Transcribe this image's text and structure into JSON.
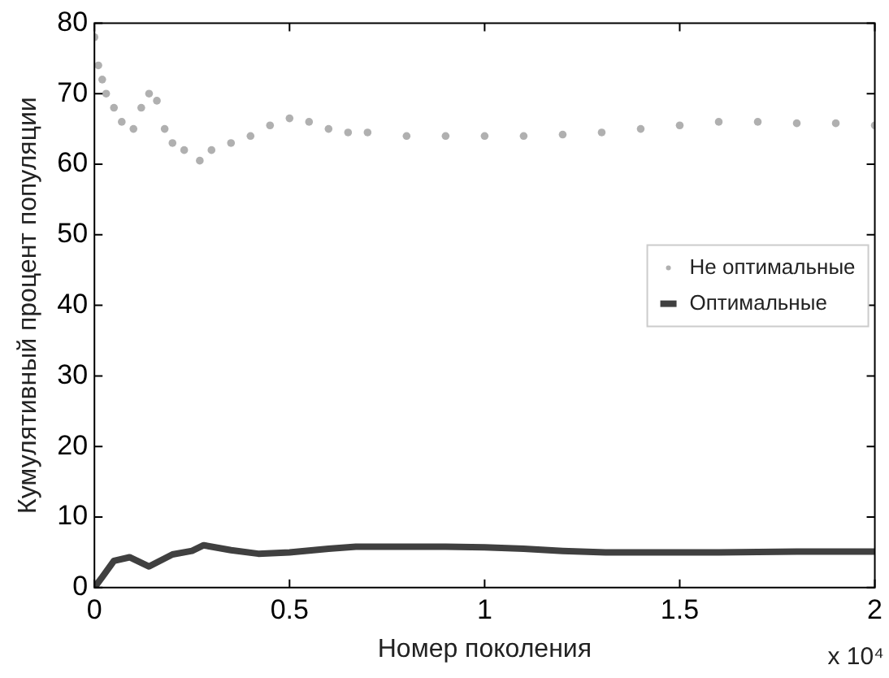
{
  "chart_data": {
    "type": "line",
    "xlabel": "Номер поколения",
    "ylabel": "Кумулятивный процент популяции",
    "annotations": [
      "x 10⁴"
    ],
    "xlim": [
      0,
      2
    ],
    "xticks": [
      0,
      0.5,
      1,
      1.5,
      2
    ],
    "ylim": [
      0,
      80
    ],
    "yticks": [
      0,
      10,
      20,
      30,
      40,
      50,
      60,
      70,
      80
    ],
    "grid": false,
    "legend": "right",
    "series": [
      {
        "name": "Не оптимальные",
        "type": "scatter",
        "marker": "circle",
        "color": "#b0b0b0",
        "x": [
          0,
          0.01,
          0.02,
          0.03,
          0.05,
          0.07,
          0.1,
          0.12,
          0.14,
          0.16,
          0.18,
          0.2,
          0.23,
          0.27,
          0.3,
          0.35,
          0.4,
          0.45,
          0.5,
          0.55,
          0.6,
          0.65,
          0.7,
          0.8,
          0.9,
          1.0,
          1.1,
          1.2,
          1.3,
          1.4,
          1.5,
          1.6,
          1.7,
          1.8,
          1.9,
          2.0
        ],
        "values": [
          78,
          74,
          72,
          70,
          68,
          66,
          65,
          68,
          70,
          69,
          65,
          63,
          62,
          60.5,
          62,
          63,
          64,
          65.5,
          66.5,
          66,
          65,
          64.5,
          64.5,
          64,
          64,
          64,
          64,
          64.2,
          64.5,
          65,
          65.5,
          66,
          66,
          65.8,
          65.8,
          65.5
        ]
      },
      {
        "name": "Оптимальные",
        "marker": "none",
        "color": "#404040",
        "x": [
          0,
          0.02,
          0.05,
          0.09,
          0.14,
          0.2,
          0.25,
          0.28,
          0.35,
          0.42,
          0.5,
          0.6,
          0.67,
          0.8,
          0.9,
          1.0,
          1.1,
          1.2,
          1.31,
          1.45,
          1.6,
          1.8,
          2.0
        ],
        "values": [
          0,
          1.5,
          3.8,
          4.3,
          3,
          4.7,
          5.2,
          6,
          5.3,
          4.8,
          5,
          5.5,
          5.8,
          5.8,
          5.8,
          5.7,
          5.5,
          5.2,
          5,
          5,
          5,
          5.1,
          5.1
        ]
      }
    ]
  }
}
